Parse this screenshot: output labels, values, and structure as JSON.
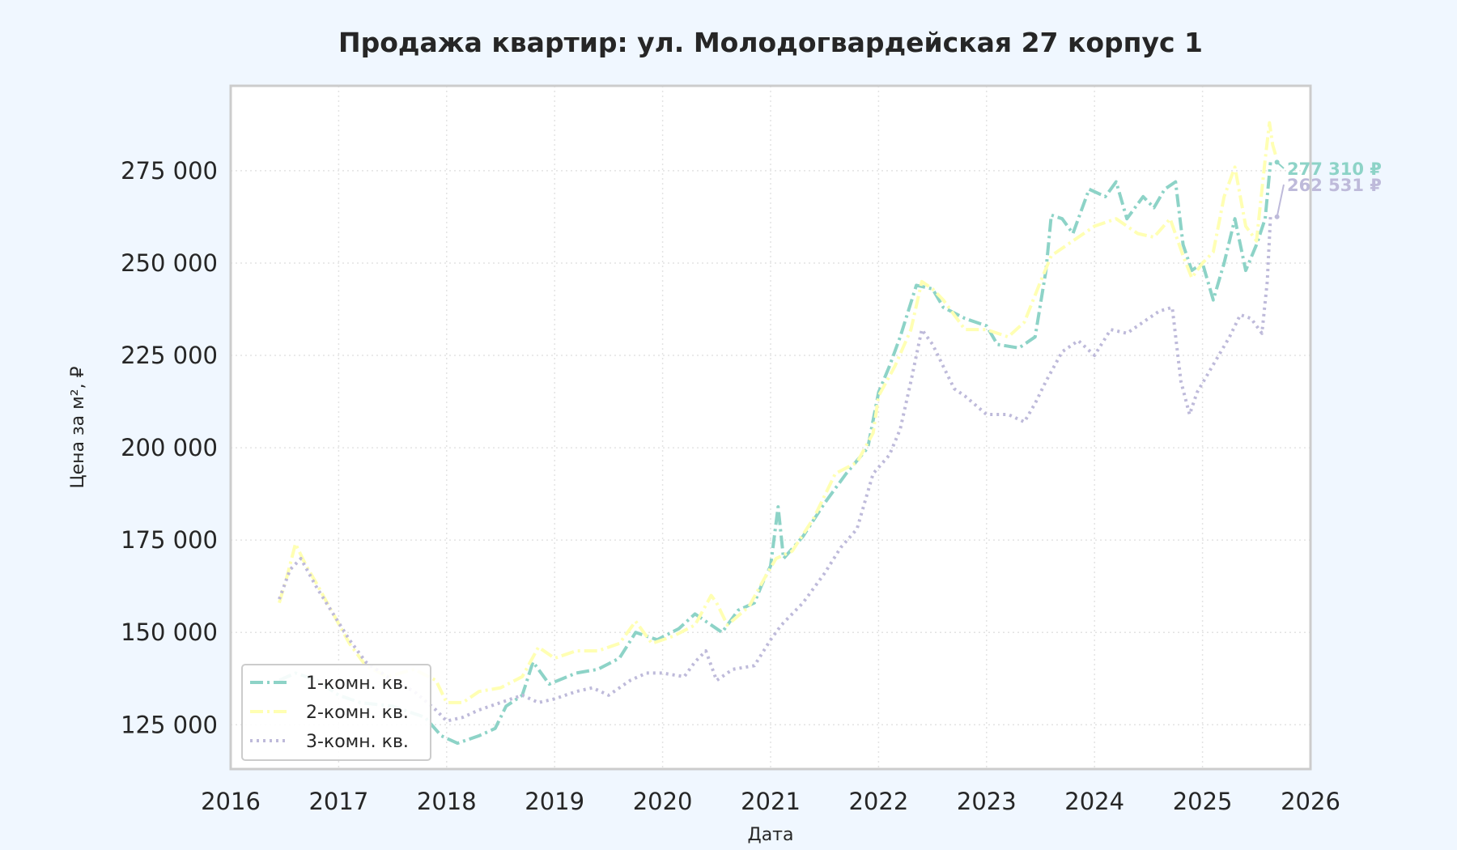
{
  "chart_data": {
    "type": "line",
    "title": "Продажа квартир: ул. Молодогвардейская 27 корпус 1",
    "xlabel": "Дата",
    "ylabel": "Цена за м², ₽",
    "xlim": [
      2016.0,
      2026.0
    ],
    "ylim": [
      113000,
      298000
    ],
    "x_ticks": [
      2016,
      2017,
      2018,
      2019,
      2020,
      2021,
      2022,
      2023,
      2024,
      2025,
      2026
    ],
    "x_tick_labels": [
      "2016",
      "2017",
      "2018",
      "2019",
      "2020",
      "2021",
      "2022",
      "2023",
      "2024",
      "2025",
      "2026"
    ],
    "y_ticks": [
      125000,
      150000,
      175000,
      200000,
      225000,
      250000,
      275000
    ],
    "y_tick_labels": [
      "125 000",
      "150 000",
      "175 000",
      "200 000",
      "225 000",
      "250 000",
      "275 000"
    ],
    "grid": true,
    "legend_position": "bottom-left",
    "background": "#f0f7ff",
    "plot_background": "#ffffff",
    "series": [
      {
        "name": "1-комн. кв.",
        "color": "#8dd3c7",
        "dash": "dashdot",
        "points": [
          [
            2016.45,
            137000
          ],
          [
            2016.6,
            139000
          ],
          [
            2016.8,
            137000
          ],
          [
            2017.0,
            133000
          ],
          [
            2017.2,
            131000
          ],
          [
            2017.5,
            130000
          ],
          [
            2017.8,
            127000
          ],
          [
            2017.95,
            122000
          ],
          [
            2018.1,
            120000
          ],
          [
            2018.3,
            122000
          ],
          [
            2018.45,
            124000
          ],
          [
            2018.55,
            130000
          ],
          [
            2018.7,
            133000
          ],
          [
            2018.8,
            142000
          ],
          [
            2018.95,
            136000
          ],
          [
            2019.2,
            139000
          ],
          [
            2019.4,
            140000
          ],
          [
            2019.6,
            143000
          ],
          [
            2019.75,
            150000
          ],
          [
            2019.95,
            148000
          ],
          [
            2020.15,
            151000
          ],
          [
            2020.3,
            155000
          ],
          [
            2020.4,
            153000
          ],
          [
            2020.55,
            150000
          ],
          [
            2020.7,
            156000
          ],
          [
            2020.85,
            158000
          ],
          [
            2020.92,
            163000
          ],
          [
            2021.0,
            168000
          ],
          [
            2021.07,
            184000
          ],
          [
            2021.12,
            170000
          ],
          [
            2021.3,
            176000
          ],
          [
            2021.5,
            185000
          ],
          [
            2021.7,
            193000
          ],
          [
            2021.9,
            200000
          ],
          [
            2022.0,
            215000
          ],
          [
            2022.1,
            222000
          ],
          [
            2022.2,
            230000
          ],
          [
            2022.35,
            244000
          ],
          [
            2022.5,
            243000
          ],
          [
            2022.6,
            238000
          ],
          [
            2022.8,
            235000
          ],
          [
            2023.0,
            233000
          ],
          [
            2023.1,
            228000
          ],
          [
            2023.3,
            227000
          ],
          [
            2023.45,
            230000
          ],
          [
            2023.55,
            248000
          ],
          [
            2023.6,
            263000
          ],
          [
            2023.7,
            262000
          ],
          [
            2023.8,
            258000
          ],
          [
            2023.95,
            270000
          ],
          [
            2024.1,
            268000
          ],
          [
            2024.2,
            272000
          ],
          [
            2024.3,
            262000
          ],
          [
            2024.45,
            268000
          ],
          [
            2024.55,
            265000
          ],
          [
            2024.65,
            270000
          ],
          [
            2024.75,
            272000
          ],
          [
            2024.82,
            255000
          ],
          [
            2024.9,
            248000
          ],
          [
            2025.0,
            250000
          ],
          [
            2025.1,
            240000
          ],
          [
            2025.2,
            250000
          ],
          [
            2025.3,
            262000
          ],
          [
            2025.4,
            248000
          ],
          [
            2025.5,
            255000
          ],
          [
            2025.58,
            262000
          ],
          [
            2025.63,
            277310
          ]
        ]
      },
      {
        "name": "2-комн. кв.",
        "color": "#ffffb3",
        "dash": "dashdot",
        "points": [
          [
            2016.45,
            158000
          ],
          [
            2016.52,
            165000
          ],
          [
            2016.6,
            174000
          ],
          [
            2016.7,
            168000
          ],
          [
            2016.8,
            163000
          ],
          [
            2016.95,
            155000
          ],
          [
            2017.1,
            147000
          ],
          [
            2017.25,
            141000
          ],
          [
            2017.45,
            138000
          ],
          [
            2017.7,
            140000
          ],
          [
            2017.9,
            137000
          ],
          [
            2018.0,
            131000
          ],
          [
            2018.15,
            131000
          ],
          [
            2018.3,
            134000
          ],
          [
            2018.5,
            135000
          ],
          [
            2018.7,
            138000
          ],
          [
            2018.85,
            146000
          ],
          [
            2019.0,
            143000
          ],
          [
            2019.2,
            145000
          ],
          [
            2019.4,
            145000
          ],
          [
            2019.6,
            147000
          ],
          [
            2019.75,
            153000
          ],
          [
            2019.9,
            147000
          ],
          [
            2020.1,
            149000
          ],
          [
            2020.3,
            152000
          ],
          [
            2020.45,
            160000
          ],
          [
            2020.5,
            158000
          ],
          [
            2020.6,
            152000
          ],
          [
            2020.8,
            157000
          ],
          [
            2020.95,
            165000
          ],
          [
            2021.05,
            170000
          ],
          [
            2021.2,
            172000
          ],
          [
            2021.4,
            181000
          ],
          [
            2021.6,
            193000
          ],
          [
            2021.8,
            196000
          ],
          [
            2021.95,
            204000
          ],
          [
            2022.0,
            214000
          ],
          [
            2022.15,
            222000
          ],
          [
            2022.3,
            232000
          ],
          [
            2022.4,
            245000
          ],
          [
            2022.5,
            243000
          ],
          [
            2022.6,
            240000
          ],
          [
            2022.8,
            232000
          ],
          [
            2023.0,
            232000
          ],
          [
            2023.2,
            230000
          ],
          [
            2023.35,
            234000
          ],
          [
            2023.5,
            245000
          ],
          [
            2023.6,
            252000
          ],
          [
            2023.8,
            256000
          ],
          [
            2024.0,
            260000
          ],
          [
            2024.2,
            262000
          ],
          [
            2024.4,
            258000
          ],
          [
            2024.55,
            257000
          ],
          [
            2024.7,
            262000
          ],
          [
            2024.82,
            252000
          ],
          [
            2024.9,
            246000
          ],
          [
            2025.0,
            250000
          ],
          [
            2025.1,
            253000
          ],
          [
            2025.2,
            268000
          ],
          [
            2025.3,
            276000
          ],
          [
            2025.4,
            260000
          ],
          [
            2025.5,
            256000
          ],
          [
            2025.58,
            278000
          ],
          [
            2025.62,
            288000
          ],
          [
            2025.65,
            282000
          ],
          [
            2025.68,
            279000
          ]
        ]
      },
      {
        "name": "3-комн. кв.",
        "color": "#bebada",
        "dash": "dotted",
        "points": [
          [
            2016.45,
            159000
          ],
          [
            2016.55,
            167000
          ],
          [
            2016.65,
            170000
          ],
          [
            2016.8,
            162000
          ],
          [
            2016.95,
            155000
          ],
          [
            2017.1,
            148000
          ],
          [
            2017.25,
            142000
          ],
          [
            2017.45,
            138000
          ],
          [
            2017.7,
            134000
          ],
          [
            2017.9,
            129000
          ],
          [
            2018.0,
            126000
          ],
          [
            2018.15,
            127000
          ],
          [
            2018.3,
            129000
          ],
          [
            2018.5,
            131000
          ],
          [
            2018.7,
            133000
          ],
          [
            2018.85,
            131000
          ],
          [
            2019.0,
            132000
          ],
          [
            2019.2,
            134000
          ],
          [
            2019.35,
            135000
          ],
          [
            2019.5,
            133000
          ],
          [
            2019.7,
            137000
          ],
          [
            2019.85,
            139000
          ],
          [
            2020.0,
            139000
          ],
          [
            2020.2,
            138000
          ],
          [
            2020.3,
            142000
          ],
          [
            2020.4,
            145000
          ],
          [
            2020.5,
            137000
          ],
          [
            2020.65,
            140000
          ],
          [
            2020.85,
            141000
          ],
          [
            2021.0,
            148000
          ],
          [
            2021.1,
            152000
          ],
          [
            2021.3,
            158000
          ],
          [
            2021.5,
            166000
          ],
          [
            2021.65,
            173000
          ],
          [
            2021.8,
            178000
          ],
          [
            2021.95,
            193000
          ],
          [
            2022.1,
            198000
          ],
          [
            2022.2,
            205000
          ],
          [
            2022.3,
            218000
          ],
          [
            2022.4,
            232000
          ],
          [
            2022.5,
            228000
          ],
          [
            2022.6,
            222000
          ],
          [
            2022.7,
            216000
          ],
          [
            2022.8,
            214000
          ],
          [
            2023.0,
            209000
          ],
          [
            2023.2,
            209000
          ],
          [
            2023.35,
            207000
          ],
          [
            2023.45,
            212000
          ],
          [
            2023.55,
            218000
          ],
          [
            2023.7,
            226000
          ],
          [
            2023.85,
            229000
          ],
          [
            2024.0,
            225000
          ],
          [
            2024.15,
            232000
          ],
          [
            2024.3,
            231000
          ],
          [
            2024.45,
            234000
          ],
          [
            2024.6,
            237000
          ],
          [
            2024.72,
            238000
          ],
          [
            2024.8,
            218000
          ],
          [
            2024.88,
            209000
          ],
          [
            2024.95,
            215000
          ],
          [
            2025.05,
            220000
          ],
          [
            2025.15,
            225000
          ],
          [
            2025.25,
            230000
          ],
          [
            2025.35,
            236000
          ],
          [
            2025.45,
            235000
          ],
          [
            2025.55,
            231000
          ],
          [
            2025.6,
            245000
          ],
          [
            2025.63,
            262531
          ]
        ]
      }
    ],
    "annotations": [
      {
        "series": "1-комн. кв.",
        "text": "277 310 ₽",
        "x": 2025.63,
        "y": 277310,
        "color": "#8dd3c7"
      },
      {
        "series": "3-комн. кв.",
        "text": "262 531 ₽",
        "x": 2025.63,
        "y": 262531,
        "color": "#bebada"
      }
    ]
  }
}
